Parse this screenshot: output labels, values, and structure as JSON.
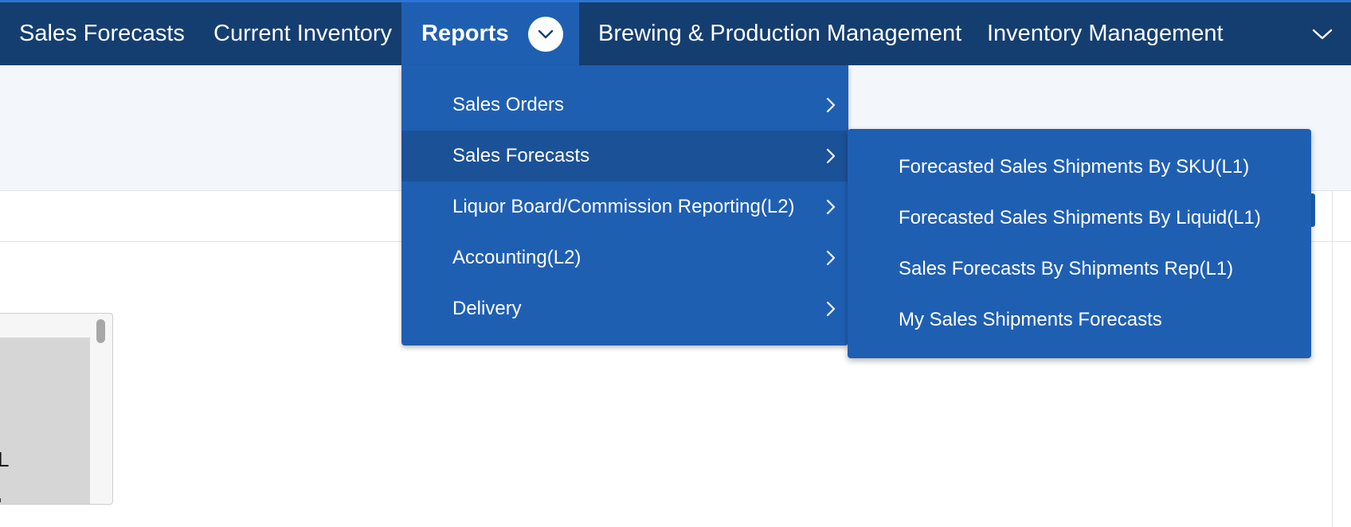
{
  "nav": {
    "items": [
      {
        "label": "Sales Forecasts"
      },
      {
        "label": "Current Inventory"
      },
      {
        "label": "Reports"
      },
      {
        "label": "Brewing & Production Management"
      },
      {
        "label": "Inventory Management"
      }
    ],
    "active_item": "Reports"
  },
  "reports_menu": {
    "items": [
      {
        "label": "Sales Orders"
      },
      {
        "label": "Sales Forecasts"
      },
      {
        "label": "Liquor Board/Commission Reporting(L2)"
      },
      {
        "label": "Accounting(L2)"
      },
      {
        "label": "Delivery"
      }
    ],
    "highlighted_item": "Sales Forecasts"
  },
  "sales_forecasts_submenu": {
    "items": [
      {
        "label": "Forecasted Sales Shipments By SKU(L1)"
      },
      {
        "label": "Forecasted Sales Shipments By Liquid(L1)"
      },
      {
        "label": "Sales Forecasts By Shipments Rep(L1)"
      },
      {
        "label": "My Sales Shipments Forecasts"
      }
    ]
  },
  "listbox": {
    "visible_text": "L"
  },
  "icons": {
    "nav_dropdown": "chevron-down-icon",
    "nav_overflow": "chevron-down-icon",
    "menu_item": "chevron-right-icon"
  },
  "colors": {
    "nav_background": "#153e70",
    "nav_active": "#1f5fb2",
    "menu_background": "#1f5fb2",
    "menu_highlight": "#1b5197",
    "band_background": "#f3f7fc"
  }
}
